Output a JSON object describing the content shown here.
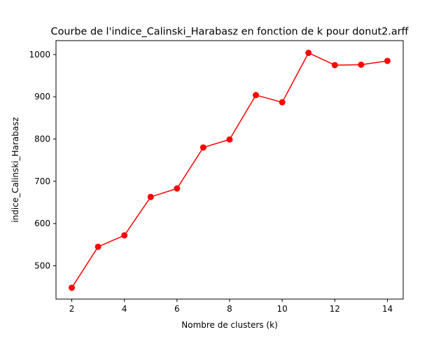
{
  "chart_data": {
    "type": "line",
    "title": "Courbe de l'indice_Calinski_Harabasz en fonction de k pour donut2.arff",
    "xlabel": "Nombre de clusters (k)",
    "ylabel": "indice_Calinski_Harabasz",
    "x": [
      2,
      3,
      4,
      5,
      6,
      7,
      8,
      9,
      10,
      11,
      12,
      13,
      14
    ],
    "series": [
      {
        "values": [
          448,
          545,
          572,
          663,
          683,
          780,
          799,
          904,
          887,
          1004,
          975,
          976,
          985
        ],
        "color": "#ff0000",
        "marker": "circle"
      }
    ],
    "xlim": [
      1.4,
      14.6
    ],
    "ylim": [
      421.2,
      1033
    ],
    "xticks": [
      2,
      4,
      6,
      8,
      10,
      12,
      14
    ],
    "yticks": [
      500,
      600,
      700,
      800,
      900,
      1000
    ],
    "grid": false
  }
}
